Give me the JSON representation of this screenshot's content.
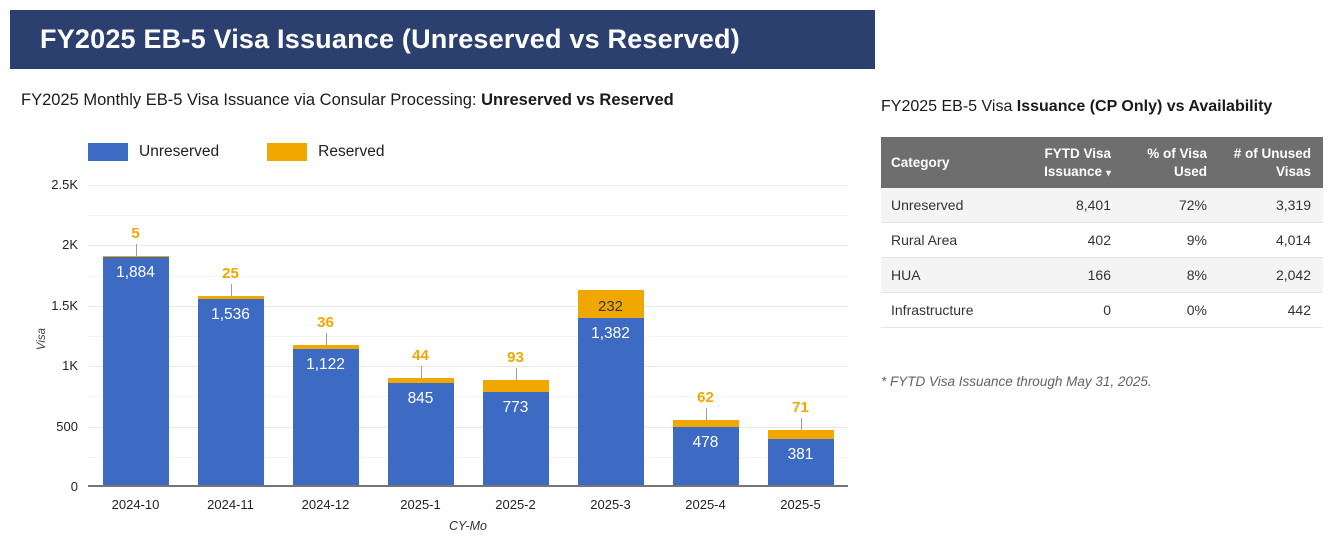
{
  "banner": {
    "title": "FY2025 EB-5 Visa Issuance (Unreserved vs Reserved)"
  },
  "chart": {
    "subtitle_prefix": "FY2025 Monthly EB-5 Visa Issuance via Consular Processing: ",
    "subtitle_bold": "Unreserved vs Reserved",
    "legend": [
      {
        "label": "Unreserved",
        "color": "#3D6BC4"
      },
      {
        "label": "Reserved",
        "color": "#F0A800"
      }
    ]
  },
  "chart_data": {
    "type": "bar",
    "stacked": true,
    "title": "FY2025 Monthly EB-5 Visa Issuance via Consular Processing: Unreserved vs Reserved",
    "categories": [
      "2024-10",
      "2024-11",
      "2024-12",
      "2025-1",
      "2025-2",
      "2025-3",
      "2025-4",
      "2025-5"
    ],
    "series": [
      {
        "name": "Unreserved",
        "color": "#3D6BC4",
        "values": [
          1884,
          1536,
          1122,
          845,
          773,
          1382,
          478,
          381
        ],
        "labels": [
          "1,884",
          "1,536",
          "1,122",
          "845",
          "773",
          "1,382",
          "478",
          "381"
        ]
      },
      {
        "name": "Reserved",
        "color": "#F0A800",
        "values": [
          5,
          25,
          36,
          44,
          93,
          232,
          62,
          71
        ],
        "labels": [
          "5",
          "25",
          "36",
          "44",
          "93",
          "232",
          "62",
          "71"
        ]
      }
    ],
    "xlabel": "CY-Mo",
    "ylabel": "Visa",
    "ylim": [
      0,
      2500
    ],
    "y_tick_step": 500,
    "y_minor_step": 250,
    "y_ticks": [
      {
        "value": 0,
        "label": "0"
      },
      {
        "value": 500,
        "label": "500"
      },
      {
        "value": 1000,
        "label": "1K"
      },
      {
        "value": 1500,
        "label": "1.5K"
      },
      {
        "value": 2000,
        "label": "2K"
      },
      {
        "value": 2500,
        "label": "2.5K"
      }
    ],
    "grid": true,
    "legend_position": "top"
  },
  "table_panel": {
    "title_prefix": "FY2025 EB-5 Visa ",
    "title_bold": "Issuance (CP Only) vs Availability",
    "columns": [
      {
        "lines": [
          "Category"
        ],
        "align": "left"
      },
      {
        "lines": [
          "FYTD Visa",
          "Issuance"
        ],
        "align": "right",
        "sort_icon": "▾"
      },
      {
        "lines": [
          "% of Visa",
          "Used"
        ],
        "align": "right"
      },
      {
        "lines": [
          "# of Unused",
          "Visas"
        ],
        "align": "right"
      }
    ],
    "rows": [
      [
        "Unreserved",
        "8,401",
        "72%",
        "3,319"
      ],
      [
        "Rural Area",
        "402",
        "9%",
        "4,014"
      ],
      [
        "HUA",
        "166",
        "8%",
        "2,042"
      ],
      [
        "Infrastructure",
        "0",
        "0%",
        "442"
      ]
    ],
    "footnote": "* FYTD Visa Issuance through May 31, 2025."
  },
  "colors": {
    "banner_bg": "#2B406E",
    "unreserved": "#3D6BC4",
    "reserved": "#F0A800",
    "table_header_bg": "#6E6E6E",
    "row_alt_bg": "#f4f4f4",
    "axis_line": "#757575",
    "gridline": "#e8e8e8"
  }
}
